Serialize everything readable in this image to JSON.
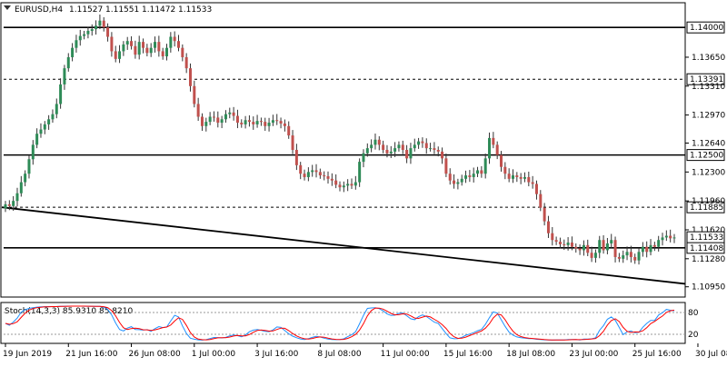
{
  "chart_data": {
    "type": "candlestick",
    "header": {
      "symbol": "EURUSD,H4",
      "open": "1.11527",
      "high": "1.11551",
      "low": "1.11472",
      "close": "1.11533"
    },
    "ylim": [
      1.1084,
      1.1428
    ],
    "y_ticks": [
      "1.13650",
      "1.13310",
      "1.12970",
      "1.12640",
      "1.12300",
      "1.11960",
      "1.11620",
      "1.11280",
      "1.10950"
    ],
    "y_tick_values": [
      1.1365,
      1.1331,
      1.1297,
      1.1264,
      1.123,
      1.1196,
      1.1162,
      1.1128,
      1.1095
    ],
    "x_ticks": [
      "19 Jun 2019",
      "21 Jun 16:00",
      "26 Jun 08:00",
      "1 Jul 00:00",
      "3 Jul 16:00",
      "8 Jul 08:00",
      "11 Jul 00:00",
      "15 Jul 16:00",
      "18 Jul 08:00",
      "23 Jul 00:00",
      "25 Jul 16:00",
      "30 Jul 08:00"
    ],
    "x_tick_bars": [
      0,
      16,
      32,
      48,
      64,
      80,
      96,
      112,
      128,
      144,
      160,
      176
    ],
    "horizontal_levels": [
      {
        "label": "1.14000",
        "value": 1.14,
        "style": "solid"
      },
      {
        "label": "1.13391",
        "value": 1.13391,
        "style": "dashed"
      },
      {
        "label": "1.12500",
        "value": 1.125,
        "style": "solid"
      },
      {
        "label": "1.11885",
        "value": 1.11885,
        "style": "dashed"
      },
      {
        "label": "1.11408",
        "value": 1.11408,
        "style": "solid"
      }
    ],
    "current_price": {
      "label": "1.11533",
      "value": 1.11533
    },
    "trendline": {
      "x1_bar": 0,
      "y1": 1.11885,
      "x2_bar": 183,
      "y2": 1.10985
    },
    "candles_close": [
      1.1192,
      1.119,
      1.1196,
      1.1205,
      1.1218,
      1.1228,
      1.1245,
      1.1262,
      1.1275,
      1.128,
      1.1286,
      1.1292,
      1.1298,
      1.131,
      1.1333,
      1.1352,
      1.1365,
      1.1376,
      1.1385,
      1.139,
      1.1392,
      1.1396,
      1.1398,
      1.1402,
      1.1408,
      1.14,
      1.1389,
      1.1372,
      1.1363,
      1.1372,
      1.138,
      1.1384,
      1.1378,
      1.1368,
      1.1383,
      1.1376,
      1.137,
      1.1376,
      1.1383,
      1.1372,
      1.1366,
      1.1376,
      1.1389,
      1.1384,
      1.1376,
      1.1365,
      1.1352,
      1.1331,
      1.131,
      1.1295,
      1.1284,
      1.1289,
      1.1295,
      1.1294,
      1.1288,
      1.1292,
      1.1298,
      1.13,
      1.1296,
      1.1288,
      1.1286,
      1.1291,
      1.1289,
      1.1286,
      1.129,
      1.1289,
      1.1284,
      1.1288,
      1.1291,
      1.129,
      1.1287,
      1.1284,
      1.1273,
      1.1256,
      1.1238,
      1.1228,
      1.1224,
      1.123,
      1.1232,
      1.123,
      1.1226,
      1.1225,
      1.1222,
      1.122,
      1.1215,
      1.1212,
      1.1214,
      1.1216,
      1.1214,
      1.1218,
      1.1242,
      1.1252,
      1.1258,
      1.1262,
      1.1268,
      1.1262,
      1.1256,
      1.1252,
      1.1254,
      1.1258,
      1.1262,
      1.1256,
      1.1246,
      1.1258,
      1.1262,
      1.1266,
      1.1264,
      1.1258,
      1.1258,
      1.1256,
      1.1254,
      1.1246,
      1.1228,
      1.122,
      1.1216,
      1.1218,
      1.1222,
      1.1226,
      1.1224,
      1.1228,
      1.1232,
      1.1228,
      1.1246,
      1.127,
      1.1262,
      1.125,
      1.1236,
      1.1228,
      1.1222,
      1.1226,
      1.1224,
      1.1222,
      1.1224,
      1.1218,
      1.1216,
      1.1204,
      1.1188,
      1.1172,
      1.1158,
      1.115,
      1.1148,
      1.1145,
      1.1144,
      1.1147,
      1.1142,
      1.114,
      1.1138,
      1.1144,
      1.1135,
      1.1129,
      1.1135,
      1.115,
      1.1138,
      1.1146,
      1.115,
      1.113,
      1.1128,
      1.1132,
      1.1136,
      1.113,
      1.1126,
      1.1136,
      1.1142,
      1.1136,
      1.1144,
      1.1142,
      1.115,
      1.1153,
      1.1155,
      1.1152,
      1.1153
    ],
    "stochastic": {
      "label": "Stoch(14,3,3) 85.9310 85.8210",
      "levels": [
        "80",
        "20"
      ],
      "level_values": [
        80,
        20
      ],
      "main_color": "#1e90ff",
      "signal_color": "#ff0000"
    },
    "colors": {
      "bull_body": "#2e8b57",
      "bear_body": "#c0504d",
      "wick": "#333333",
      "grid": "#000000",
      "trendline": "#000000"
    }
  }
}
